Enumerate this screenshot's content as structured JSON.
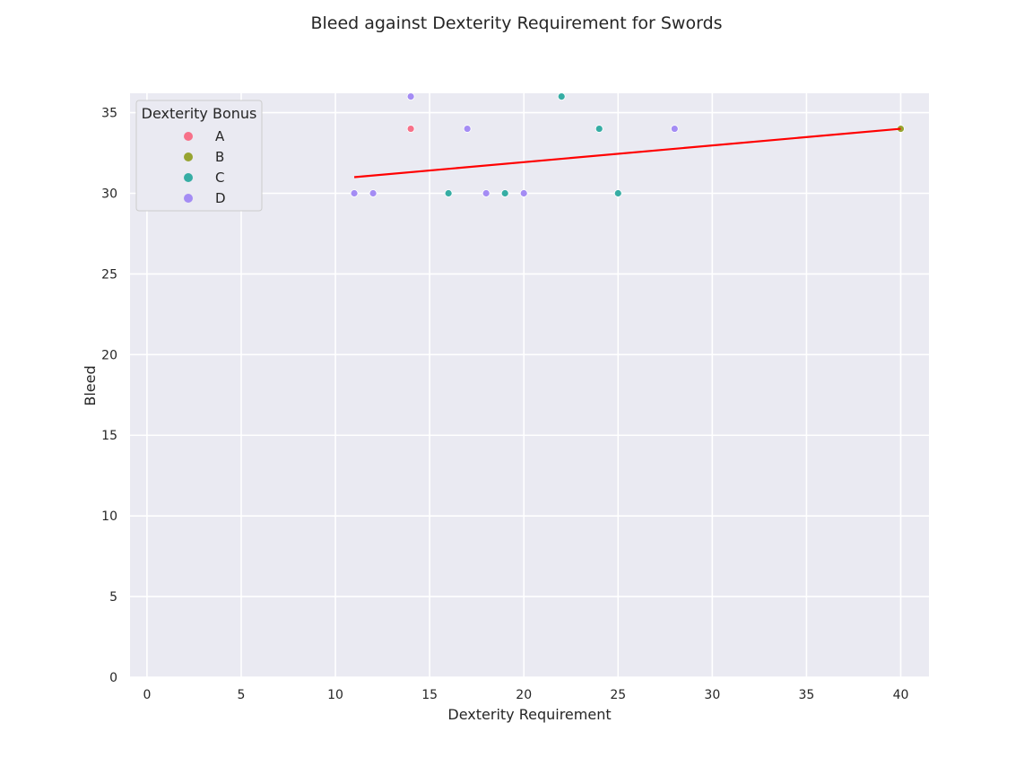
{
  "chart_data": {
    "type": "scatter",
    "title": "Bleed against Dexterity Requirement for Swords",
    "xlabel": "Dexterity Requirement",
    "ylabel": "Bleed",
    "xlim": [
      -0.9,
      41.5
    ],
    "ylim": [
      0,
      36.2
    ],
    "xticks": [
      0,
      5,
      10,
      15,
      20,
      25,
      30,
      35,
      40
    ],
    "yticks": [
      0,
      5,
      10,
      15,
      20,
      25,
      30,
      35
    ],
    "grid": true,
    "legend": {
      "title": "Dexterity Bonus",
      "placement": "top-left"
    },
    "series": [
      {
        "name": "A",
        "color": "#f77189",
        "points": [
          [
            14,
            34
          ]
        ]
      },
      {
        "name": "B",
        "color": "#97a431",
        "points": [
          [
            40,
            34
          ]
        ]
      },
      {
        "name": "C",
        "color": "#36ada4",
        "points": [
          [
            22,
            36
          ],
          [
            24,
            34
          ],
          [
            16,
            30
          ],
          [
            19,
            30
          ],
          [
            25,
            30
          ]
        ]
      },
      {
        "name": "D",
        "color": "#a48cf4",
        "points": [
          [
            14,
            36
          ],
          [
            17,
            34
          ],
          [
            28,
            34
          ],
          [
            11,
            30
          ],
          [
            12,
            30
          ],
          [
            18,
            30
          ],
          [
            20,
            30
          ]
        ]
      }
    ],
    "trendline": {
      "color": "#ff0000",
      "x": [
        11,
        40
      ],
      "y": [
        31.0,
        34.0
      ]
    }
  }
}
